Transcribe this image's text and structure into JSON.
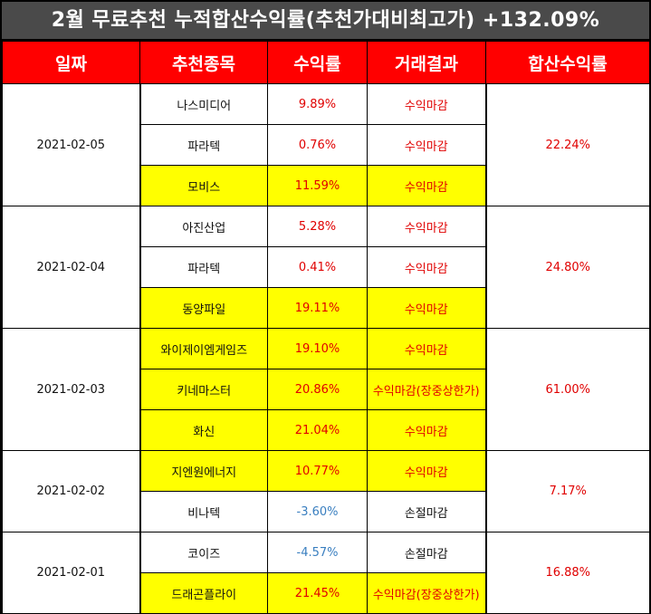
{
  "title": "2월 무료추천 누적합산수익률(추천가대비최고가) +132.09%",
  "headers": [
    "일짜",
    "추천종목",
    "수익률",
    "거래결과",
    "합산수익률"
  ],
  "groups": [
    {
      "date": "2021-02-05",
      "total": "22.24%",
      "rows": [
        {
          "stock": "나스미디어",
          "ret": "9.89%",
          "result": "수익마감",
          "highlight": false,
          "negative": false,
          "loss": false
        },
        {
          "stock": "파라텍",
          "ret": "0.76%",
          "result": "수익마감",
          "highlight": false,
          "negative": false,
          "loss": false
        },
        {
          "stock": "모비스",
          "ret": "11.59%",
          "result": "수익마감",
          "highlight": true,
          "negative": false,
          "loss": false
        }
      ]
    },
    {
      "date": "2021-02-04",
      "total": "24.80%",
      "rows": [
        {
          "stock": "아진산업",
          "ret": "5.28%",
          "result": "수익마감",
          "highlight": false,
          "negative": false,
          "loss": false
        },
        {
          "stock": "파라텍",
          "ret": "0.41%",
          "result": "수익마감",
          "highlight": false,
          "negative": false,
          "loss": false
        },
        {
          "stock": "동양파일",
          "ret": "19.11%",
          "result": "수익마감",
          "highlight": true,
          "negative": false,
          "loss": false
        }
      ]
    },
    {
      "date": "2021-02-03",
      "total": "61.00%",
      "rows": [
        {
          "stock": "와이제이엠게임즈",
          "ret": "19.10%",
          "result": "수익마감",
          "highlight": true,
          "negative": false,
          "loss": false
        },
        {
          "stock": "키네마스터",
          "ret": "20.86%",
          "result": "수익마감(장중상한가)",
          "highlight": true,
          "negative": false,
          "loss": false
        },
        {
          "stock": "화신",
          "ret": "21.04%",
          "result": "수익마감",
          "highlight": true,
          "negative": false,
          "loss": false
        }
      ]
    },
    {
      "date": "2021-02-02",
      "total": "7.17%",
      "rows": [
        {
          "stock": "지엔원에너지",
          "ret": "10.77%",
          "result": "수익마감",
          "highlight": true,
          "negative": false,
          "loss": false
        },
        {
          "stock": "비나텍",
          "ret": "-3.60%",
          "result": "손절마감",
          "highlight": false,
          "negative": true,
          "loss": true
        }
      ]
    },
    {
      "date": "2021-02-01",
      "total": "16.88%",
      "rows": [
        {
          "stock": "코이즈",
          "ret": "-4.57%",
          "result": "손절마감",
          "highlight": false,
          "negative": true,
          "loss": true
        },
        {
          "stock": "드래곤플라이",
          "ret": "21.45%",
          "result": "수익마감(장중상한가)",
          "highlight": true,
          "negative": false,
          "loss": false
        }
      ]
    }
  ],
  "colors": {
    "title_bg": "#4a4a4a",
    "header_bg": "#ff0000",
    "highlight": "#ffff00",
    "profit_text": "#e00000",
    "loss_text": "#3a7fc0"
  }
}
